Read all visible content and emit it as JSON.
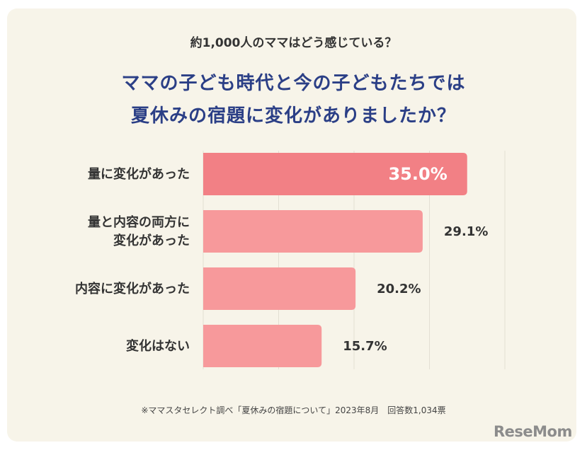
{
  "header": {
    "subtitle": "約1,000人のママはどう感じている？",
    "title_line1": "ママの子ども時代と今の子どもたちでは",
    "title_line2": "夏休みの宿題に変化がありましたか？"
  },
  "footer": {
    "note": "※ママスタセレクト調べ「夏休みの宿題について」2023年8月　回答数1,034票",
    "logo": "ReseMom"
  },
  "colors": {
    "highlight_bar": "#f28085",
    "bar": "#f7999b",
    "title": "#2b3f86",
    "background": "#f7f4e9"
  },
  "chart_data": {
    "type": "bar",
    "orientation": "horizontal",
    "categories": [
      [
        "量に変化があった"
      ],
      [
        "量と内容の両方に",
        "変化があった"
      ],
      [
        "内容に変化があった"
      ],
      [
        "変化はない"
      ]
    ],
    "values": [
      35.0,
      29.1,
      20.2,
      15.7
    ],
    "value_labels": [
      "35.0%",
      "29.1%",
      "20.2%",
      "15.7%"
    ],
    "unit": "%",
    "xlim": [
      0,
      40
    ],
    "grid": true
  }
}
